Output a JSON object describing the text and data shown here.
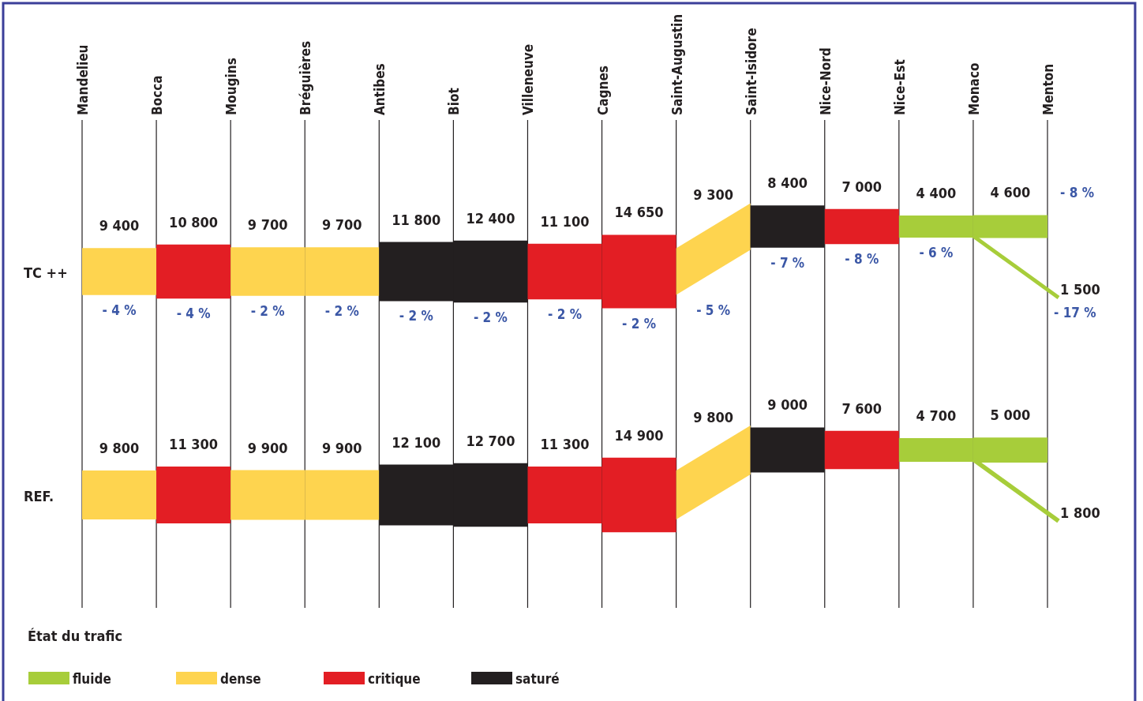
{
  "chart_data": {
    "type": "other",
    "categories": [
      "Mandelieu",
      "Bocca",
      "Mougins",
      "Bréguières",
      "Antibes",
      "Biot",
      "Villeneuve",
      "Cagnes",
      "Saint-Augustin",
      "Saint-Isidore",
      "Nice-Nord",
      "Nice-Est",
      "Monaco",
      "Menton"
    ],
    "series": [
      {
        "name": "TC ++",
        "values": [
          9400,
          10800,
          9700,
          9700,
          11800,
          12400,
          11100,
          14650,
          9300,
          8400,
          7000,
          4400,
          4600,
          1500
        ],
        "value_labels": [
          "9 400",
          "10 800",
          "9 700",
          "9 700",
          "11 800",
          "12 400",
          "11 100",
          "14 650",
          "9 300",
          "8 400",
          "7 000",
          "4 400",
          "4 600",
          "1 500"
        ],
        "colors": [
          "#fed44f",
          "#e31e24",
          "#fed44f",
          "#fed44f",
          "#231f20",
          "#231f20",
          "#e31e24",
          "#e31e24",
          "#fed44f",
          "#231f20",
          "#e31e24",
          "#a7cd3a",
          "#a7cd3a",
          "#a7cd3a"
        ]
      },
      {
        "name": "REF.",
        "values": [
          9800,
          11300,
          9900,
          9900,
          12100,
          12700,
          11300,
          14900,
          9800,
          9000,
          7600,
          4700,
          5000,
          1800
        ],
        "value_labels": [
          "9 800",
          "11 300",
          "9 900",
          "9 900",
          "12 100",
          "12 700",
          "11 300",
          "14 900",
          "9 800",
          "9 000",
          "7 600",
          "4 700",
          "5 000",
          "1 800"
        ],
        "colors": [
          "#fed44f",
          "#e31e24",
          "#fed44f",
          "#fed44f",
          "#231f20",
          "#231f20",
          "#e31e24",
          "#e31e24",
          "#fed44f",
          "#231f20",
          "#e31e24",
          "#a7cd3a",
          "#a7cd3a",
          "#a7cd3a"
        ]
      },
      {
        "name": "fluide",
        "color": "#a7cd3a",
        "values": [
          null,
          null,
          null,
          null,
          null,
          null,
          null,
          null,
          null,
          null,
          null,
          null,
          null,
          null
        ]
      },
      {
        "name": "dense",
        "color": "#fed44f",
        "values": [
          null,
          null,
          null,
          null,
          null,
          null,
          null,
          null,
          null,
          null,
          null,
          null,
          null,
          null
        ]
      },
      {
        "name": "critique",
        "color": "#e31e24",
        "values": [
          null,
          null,
          null,
          null,
          null,
          null,
          null,
          null,
          null,
          null,
          null,
          null,
          null,
          null
        ]
      },
      {
        "name": "saturé",
        "color": "#231f20",
        "values": [
          null,
          null,
          null,
          null,
          null,
          null,
          null,
          null,
          null,
          null,
          null,
          null,
          null,
          null
        ]
      }
    ],
    "annotations": [
      "- 4 %",
      "- 4 %",
      "- 2 %",
      "- 2 %",
      "- 2 %",
      "- 2 %",
      "- 2 %",
      "- 2 %",
      "- 5 %",
      "- 7 %",
      "- 8 %",
      "- 6 %",
      "- 8 %",
      "- 17 %"
    ],
    "legend_title": "État du trafic",
    "legend": "bottom left"
  }
}
